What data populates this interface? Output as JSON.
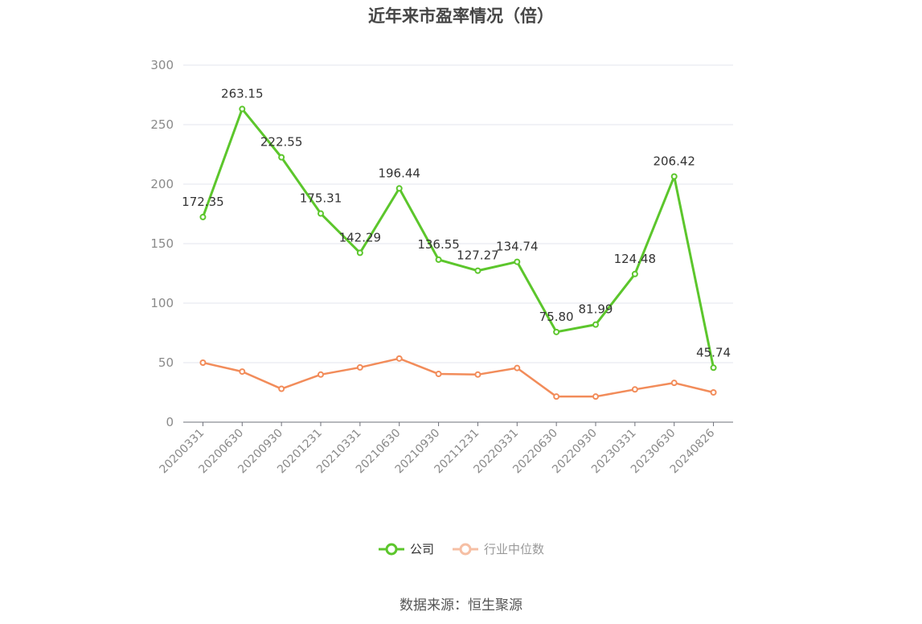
{
  "chart_data": {
    "type": "line",
    "title": "近年来市盈率情况（倍）",
    "categories": [
      "20200331",
      "20200630",
      "20200930",
      "20201231",
      "20210331",
      "20210630",
      "20210930",
      "20211231",
      "20220331",
      "20220630",
      "20220930",
      "20230331",
      "20230630",
      "20240826"
    ],
    "series": [
      {
        "name": "公司",
        "color": "#5cc62c",
        "values": [
          172.35,
          263.15,
          222.55,
          175.31,
          142.29,
          196.44,
          136.55,
          127.27,
          134.74,
          75.8,
          81.99,
          124.48,
          206.42,
          45.74
        ],
        "labels": [
          "172.35",
          "263.15",
          "222.55",
          "175.31",
          "142.29",
          "196.44",
          "136.55",
          "127.27",
          "134.74",
          "75.80",
          "81.99",
          "124.48",
          "206.42",
          "45.74"
        ]
      },
      {
        "name": "行业中位数",
        "color": "#f28c5a",
        "values": [
          50,
          42.5,
          28,
          40,
          46,
          53.5,
          40.5,
          40,
          45.5,
          21.5,
          21.5,
          27.5,
          33,
          25
        ]
      }
    ],
    "yticks": [
      "0",
      "50",
      "100",
      "150",
      "200",
      "250",
      "300"
    ],
    "ylim": [
      0,
      300
    ],
    "grid": true,
    "legend": "bottom-center"
  },
  "legend": {
    "company": "公司",
    "industry": "行业中位数"
  },
  "source": "数据来源：恒生聚源"
}
